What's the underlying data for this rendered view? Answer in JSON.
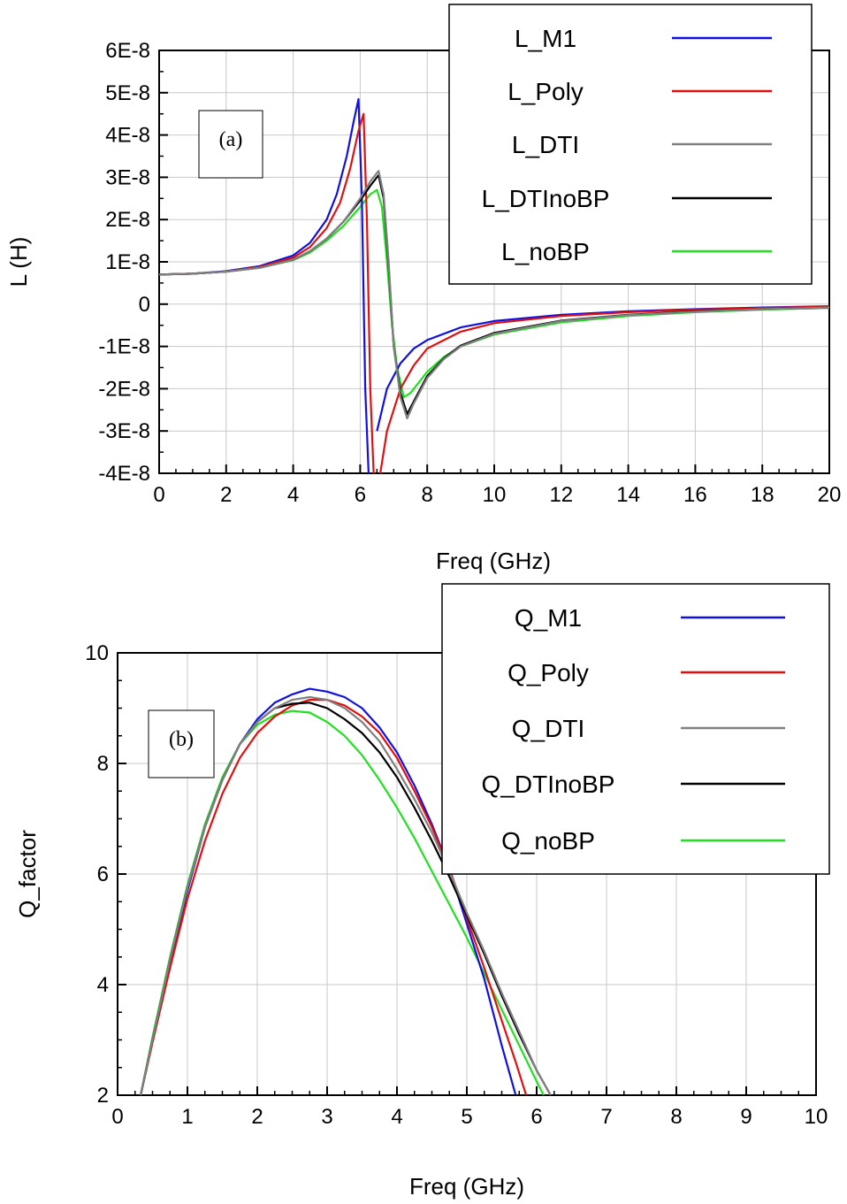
{
  "chart_data": [
    {
      "type": "line",
      "tag": "(a)",
      "xlabel": "Freq (GHz)",
      "ylabel": "L (H)",
      "xlim": [
        0,
        20
      ],
      "ylim": [
        -4e-08,
        6e-08
      ],
      "xticks": [
        "0",
        "2",
        "4",
        "6",
        "8",
        "10",
        "12",
        "14",
        "16",
        "18",
        "20"
      ],
      "yticks": [
        "-4E-8",
        "-3E-8",
        "-2E-8",
        "-1E-8",
        "0",
        "1E-8",
        "2E-8",
        "3E-8",
        "4E-8",
        "5E-8",
        "6E-8"
      ],
      "grid": true,
      "legend_position": "top-right",
      "series": [
        {
          "name": "L_M1",
          "color": "#1010e0",
          "x": [
            0,
            1,
            2,
            3,
            4,
            4.5,
            5,
            5.3,
            5.6,
            5.8,
            5.95,
            6.05,
            6.15,
            6.25,
            6.3,
            6.5,
            6.8,
            7.2,
            7.6,
            8,
            9,
            10,
            12,
            14,
            16,
            18,
            20
          ],
          "y": [
            7e-09,
            7.2e-09,
            7.8e-09,
            9e-09,
            1.15e-08,
            1.45e-08,
            2e-08,
            2.6e-08,
            3.5e-08,
            4.3e-08,
            4.85e-08,
            2.5e-08,
            -2e-08,
            -4e-08,
            null,
            -3e-08,
            -2e-08,
            -1.4e-08,
            -1.05e-08,
            -8.5e-09,
            -5.5e-09,
            -4e-09,
            -2.5e-09,
            -1.7e-09,
            -1.2e-09,
            -8e-10,
            -5e-10
          ]
        },
        {
          "name": "L_Poly",
          "color": "#e01010",
          "x": [
            0,
            1,
            2,
            3,
            4,
            4.5,
            5,
            5.4,
            5.7,
            5.95,
            6.1,
            6.2,
            6.3,
            6.4,
            6.5,
            6.6,
            6.8,
            7.2,
            7.6,
            8,
            9,
            10,
            12,
            14,
            16,
            18,
            20
          ],
          "y": [
            7e-09,
            7.2e-09,
            7.7e-09,
            8.8e-09,
            1.1e-08,
            1.35e-08,
            1.8e-08,
            2.4e-08,
            3.2e-08,
            4.1e-08,
            4.5e-08,
            2e-08,
            -2e-08,
            -4e-08,
            null,
            -4e-08,
            -3e-08,
            -2e-08,
            -1.45e-08,
            -1.05e-08,
            -6.5e-09,
            -4.5e-09,
            -2.8e-09,
            -1.9e-09,
            -1.3e-09,
            -9e-10,
            -6e-10
          ]
        },
        {
          "name": "L_DTI",
          "color": "#808080",
          "x": [
            0,
            1,
            2,
            3,
            4,
            4.5,
            5,
            5.5,
            6,
            6.3,
            6.55,
            6.7,
            6.85,
            7.0,
            7.2,
            7.4,
            7.6,
            8,
            8.5,
            9,
            10,
            12,
            14,
            16,
            18,
            20
          ],
          "y": [
            7e-09,
            7.2e-09,
            7.7e-09,
            8.6e-09,
            1.05e-08,
            1.25e-08,
            1.55e-08,
            1.95e-08,
            2.5e-08,
            2.9e-08,
            3.15e-08,
            2.6e-08,
            1e-08,
            -1e-08,
            -2.2e-08,
            -2.7e-08,
            -2.35e-08,
            -1.75e-08,
            -1.3e-08,
            -1e-08,
            -7e-09,
            -4e-09,
            -2.6e-09,
            -1.8e-09,
            -1.2e-09,
            -8e-10
          ]
        },
        {
          "name": "L_DTInoBP",
          "color": "#000000",
          "x": [
            0,
            1,
            2,
            3,
            4,
            4.5,
            5,
            5.5,
            6,
            6.3,
            6.55,
            6.7,
            6.85,
            7.0,
            7.2,
            7.4,
            7.6,
            8,
            8.5,
            9,
            10,
            12,
            14,
            16,
            18,
            20
          ],
          "y": [
            7e-09,
            7.2e-09,
            7.7e-09,
            8.6e-09,
            1.05e-08,
            1.25e-08,
            1.55e-08,
            1.95e-08,
            2.45e-08,
            2.8e-08,
            3.05e-08,
            2.5e-08,
            9e-09,
            -1e-08,
            -2.1e-08,
            -2.6e-08,
            -2.3e-08,
            -1.7e-08,
            -1.28e-08,
            -9.8e-09,
            -6.8e-09,
            -3.9e-09,
            -2.5e-09,
            -1.7e-09,
            -1.2e-09,
            -8e-10
          ]
        },
        {
          "name": "L_noBP",
          "color": "#20e020",
          "x": [
            0,
            1,
            2,
            3,
            4,
            4.5,
            5,
            5.5,
            6,
            6.3,
            6.5,
            6.65,
            6.8,
            6.95,
            7.1,
            7.3,
            7.5,
            8,
            8.5,
            9,
            10,
            12,
            14,
            16,
            18,
            20
          ],
          "y": [
            7e-09,
            7.2e-09,
            7.7e-09,
            8.6e-09,
            1.04e-08,
            1.22e-08,
            1.5e-08,
            1.85e-08,
            2.3e-08,
            2.6e-08,
            2.7e-08,
            2.3e-08,
            1e-08,
            -5e-09,
            -1.5e-08,
            -2.2e-08,
            -2.1e-08,
            -1.6e-08,
            -1.25e-08,
            -1e-08,
            -7.2e-09,
            -4.3e-09,
            -2.8e-09,
            -1.9e-09,
            -1.3e-09,
            -9e-10
          ]
        }
      ]
    },
    {
      "type": "line",
      "tag": "(b)",
      "xlabel": "Freq (GHz)",
      "ylabel": "Q_factor",
      "xlim": [
        0,
        10
      ],
      "ylim": [
        2,
        10
      ],
      "xticks": [
        "0",
        "1",
        "2",
        "3",
        "4",
        "5",
        "6",
        "7",
        "8",
        "9",
        "10"
      ],
      "yticks": [
        "2",
        "4",
        "6",
        "8",
        "10"
      ],
      "grid": true,
      "legend_position": "top-right",
      "series": [
        {
          "name": "Q_M1",
          "color": "#1010e0",
          "x": [
            0.33,
            0.5,
            0.75,
            1,
            1.25,
            1.5,
            1.75,
            2,
            2.25,
            2.5,
            2.75,
            3,
            3.25,
            3.5,
            3.75,
            4,
            4.25,
            4.5,
            4.75,
            5,
            5.25,
            5.5,
            5.7
          ],
          "y": [
            2,
            3.0,
            4.4,
            5.7,
            6.85,
            7.7,
            8.35,
            8.8,
            9.1,
            9.25,
            9.35,
            9.3,
            9.2,
            9.0,
            8.65,
            8.2,
            7.6,
            6.9,
            6.1,
            5.1,
            4.1,
            2.9,
            2
          ]
        },
        {
          "name": "Q_Poly",
          "color": "#e01010",
          "x": [
            0.33,
            0.5,
            0.75,
            1,
            1.25,
            1.5,
            1.75,
            2,
            2.25,
            2.5,
            2.75,
            3,
            3.25,
            3.5,
            3.75,
            4,
            4.25,
            4.5,
            4.75,
            5,
            5.25,
            5.5,
            5.7,
            5.85
          ],
          "y": [
            2,
            2.95,
            4.3,
            5.55,
            6.6,
            7.45,
            8.1,
            8.55,
            8.85,
            9.05,
            9.15,
            9.15,
            9.05,
            8.85,
            8.55,
            8.1,
            7.5,
            6.85,
            6.1,
            5.2,
            4.3,
            3.35,
            2.6,
            2
          ]
        },
        {
          "name": "Q_DTI",
          "color": "#808080",
          "x": [
            0.33,
            0.5,
            0.75,
            1,
            1.25,
            1.5,
            1.75,
            2,
            2.25,
            2.5,
            2.75,
            3,
            3.25,
            3.5,
            3.75,
            4,
            4.25,
            4.5,
            4.75,
            5,
            5.25,
            5.5,
            5.75,
            6,
            6.2
          ],
          "y": [
            2,
            3.0,
            4.45,
            5.75,
            6.85,
            7.7,
            8.35,
            8.75,
            9.0,
            9.15,
            9.2,
            9.15,
            9.0,
            8.75,
            8.4,
            7.9,
            7.35,
            6.75,
            6.05,
            5.3,
            4.6,
            3.85,
            3.15,
            2.45,
            2
          ]
        },
        {
          "name": "Q_DTInoBP",
          "color": "#000000",
          "x": [
            0.33,
            0.5,
            0.75,
            1,
            1.25,
            1.5,
            1.75,
            2,
            2.25,
            2.5,
            2.75,
            3,
            3.25,
            3.5,
            3.75,
            4,
            4.25,
            4.5,
            4.75,
            5,
            5.25,
            5.5,
            5.75,
            6,
            6.2
          ],
          "y": [
            2,
            3.0,
            4.45,
            5.75,
            6.85,
            7.7,
            8.35,
            8.75,
            9.0,
            9.08,
            9.1,
            9.0,
            8.8,
            8.55,
            8.2,
            7.75,
            7.2,
            6.6,
            5.95,
            5.25,
            4.55,
            3.8,
            3.1,
            2.45,
            2
          ]
        },
        {
          "name": "Q_noBP",
          "color": "#20e020",
          "x": [
            0.33,
            0.5,
            0.75,
            1,
            1.25,
            1.5,
            1.75,
            2,
            2.25,
            2.5,
            2.75,
            3,
            3.25,
            3.5,
            3.75,
            4,
            4.25,
            4.5,
            4.75,
            5,
            5.25,
            5.5,
            5.75,
            6,
            6.1
          ],
          "y": [
            2,
            3.05,
            4.5,
            5.8,
            6.9,
            7.75,
            8.35,
            8.7,
            8.88,
            8.95,
            8.92,
            8.75,
            8.5,
            8.15,
            7.7,
            7.2,
            6.65,
            6.05,
            5.45,
            4.85,
            4.2,
            3.55,
            2.9,
            2.25,
            2
          ]
        }
      ]
    }
  ]
}
